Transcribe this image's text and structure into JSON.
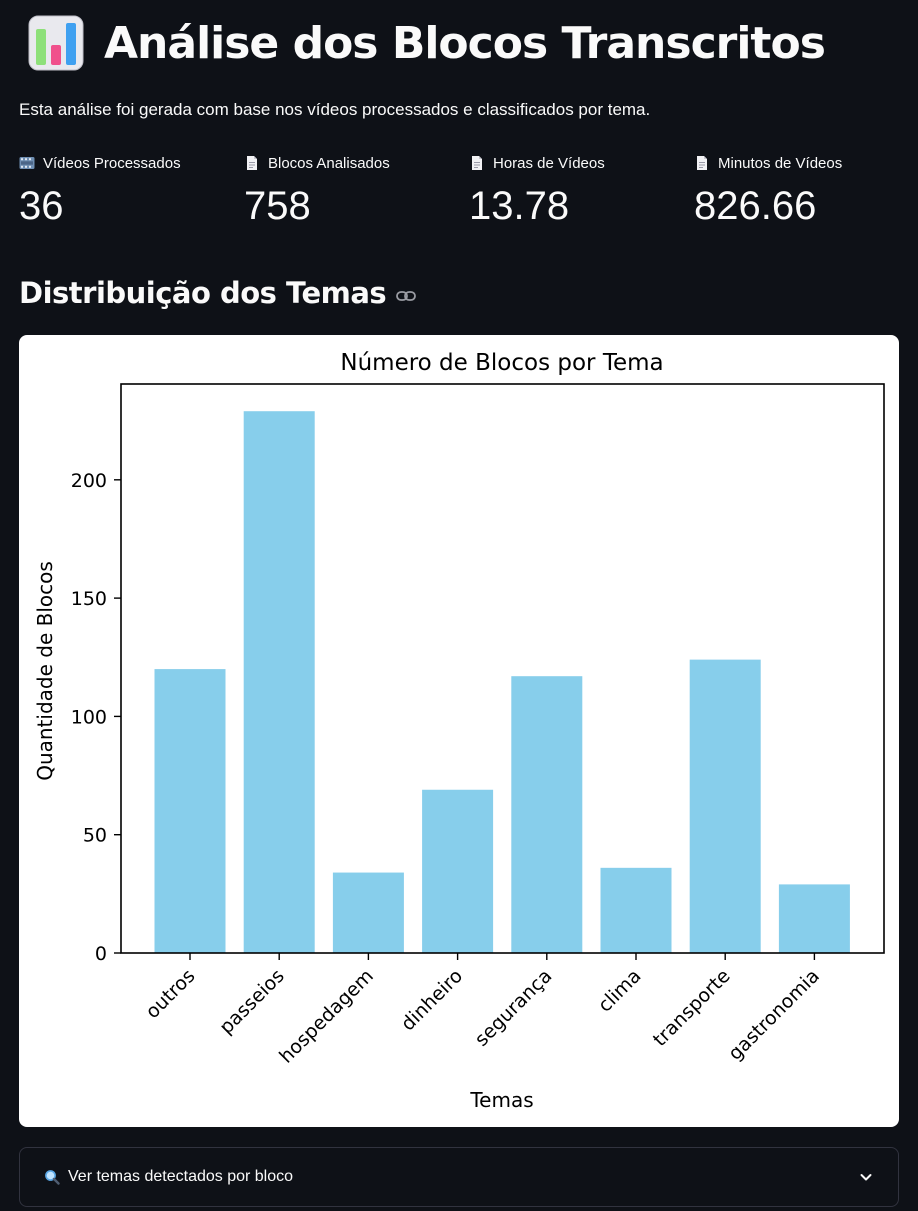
{
  "header": {
    "title": "Análise dos Blocos Transcritos",
    "subtitle": "Esta análise foi gerada com base nos vídeos processados e classificados por tema."
  },
  "metrics": [
    {
      "label": "Vídeos Processados",
      "value": "36",
      "icon": "film-icon"
    },
    {
      "label": "Blocos Analisados",
      "value": "758",
      "icon": "document-icon"
    },
    {
      "label": "Horas de Vídeos",
      "value": "13.78",
      "icon": "document-icon"
    },
    {
      "label": "Minutos de Vídeos",
      "value": "826.66",
      "icon": "document-icon"
    }
  ],
  "section": {
    "title": "Distribuição dos Temas"
  },
  "chart_data": {
    "type": "bar",
    "title": "Número de Blocos por Tema",
    "xlabel": "Temas",
    "ylabel": "Quantidade de Blocos",
    "categories": [
      "outros",
      "passeios",
      "hospedagem",
      "dinheiro",
      "segurança",
      "clima",
      "transporte",
      "gastronomia"
    ],
    "values": [
      120,
      229,
      34,
      69,
      117,
      36,
      124,
      29
    ],
    "ylim": [
      0,
      240.5
    ],
    "yticks": [
      0,
      50,
      100,
      150,
      200
    ],
    "bar_color": "#87ceeb",
    "grid": false
  },
  "expander": {
    "label": "Ver temas detectados por bloco",
    "icon": "magnifier-icon"
  }
}
